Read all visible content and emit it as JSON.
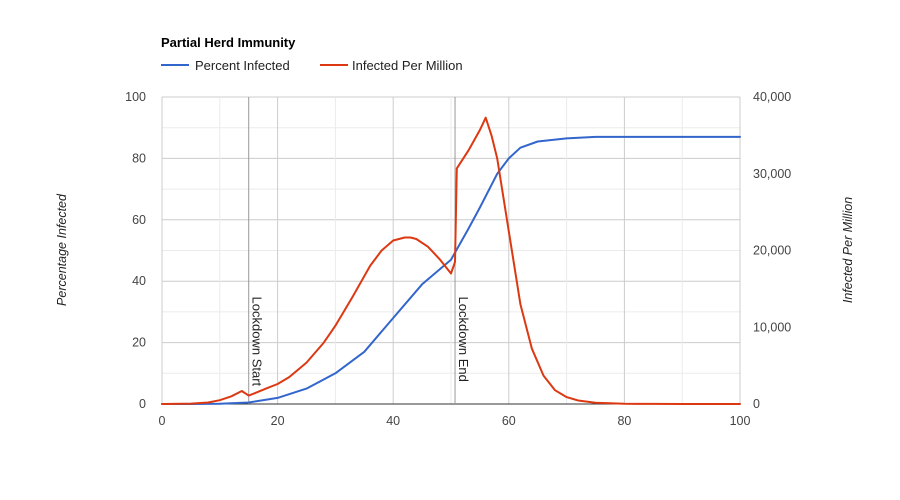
{
  "chart_data": {
    "type": "line",
    "title": "Partial Herd Immunity",
    "xlabel": "",
    "ylabel": "Percentage Infected",
    "y2label": "Infected Per Million",
    "xlim": [
      0,
      100
    ],
    "ylim": [
      0,
      100
    ],
    "y2lim": [
      0,
      40000
    ],
    "x_ticks": [
      "0",
      "20",
      "40",
      "60",
      "80",
      "100"
    ],
    "y_ticks": [
      "0",
      "20",
      "40",
      "60",
      "80",
      "100"
    ],
    "y2_ticks": [
      "0",
      "10,000",
      "20,000",
      "30,000",
      "40,000"
    ],
    "legend_position": "top-left",
    "grid": true,
    "series": [
      {
        "name": "Percent Infected",
        "axis": "left",
        "color": "#3366cc",
        "x": [
          0,
          5,
          10,
          15,
          20,
          25,
          30,
          35,
          40,
          45,
          50,
          53,
          55,
          58,
          60,
          62,
          65,
          70,
          75,
          80,
          85,
          90,
          95,
          100
        ],
        "values": [
          0,
          0,
          0.1,
          0.5,
          2,
          5,
          10,
          17,
          28,
          39,
          47,
          57,
          64,
          75,
          80,
          83.5,
          85.5,
          86.5,
          87,
          87,
          87,
          87,
          87,
          87
        ]
      },
      {
        "name": "Infected Per Million",
        "axis": "right",
        "color": "#dc3912",
        "x": [
          0,
          5,
          8,
          10,
          12,
          13.8,
          15,
          16,
          18,
          20,
          22,
          25,
          28,
          30,
          33,
          36,
          38,
          40,
          42,
          43,
          44,
          46,
          48,
          50,
          50.7,
          51,
          53,
          55,
          56,
          57,
          58,
          60,
          62,
          64,
          66,
          68,
          70,
          72,
          75,
          80,
          85,
          90,
          100
        ],
        "values": [
          0,
          50,
          200,
          500,
          1000,
          1700,
          1100,
          1400,
          2000,
          2600,
          3500,
          5400,
          8000,
          10200,
          14000,
          18000,
          20000,
          21300,
          21700,
          21700,
          21500,
          20500,
          18900,
          17000,
          18500,
          30700,
          33000,
          35700,
          37300,
          35000,
          32000,
          22500,
          13000,
          7200,
          3700,
          1800,
          900,
          450,
          150,
          30,
          10,
          0,
          0
        ]
      }
    ],
    "annotations": [
      {
        "x": 15,
        "label": "Lockdown Start"
      },
      {
        "x": 50.7,
        "label": "Lockdown End"
      }
    ]
  }
}
